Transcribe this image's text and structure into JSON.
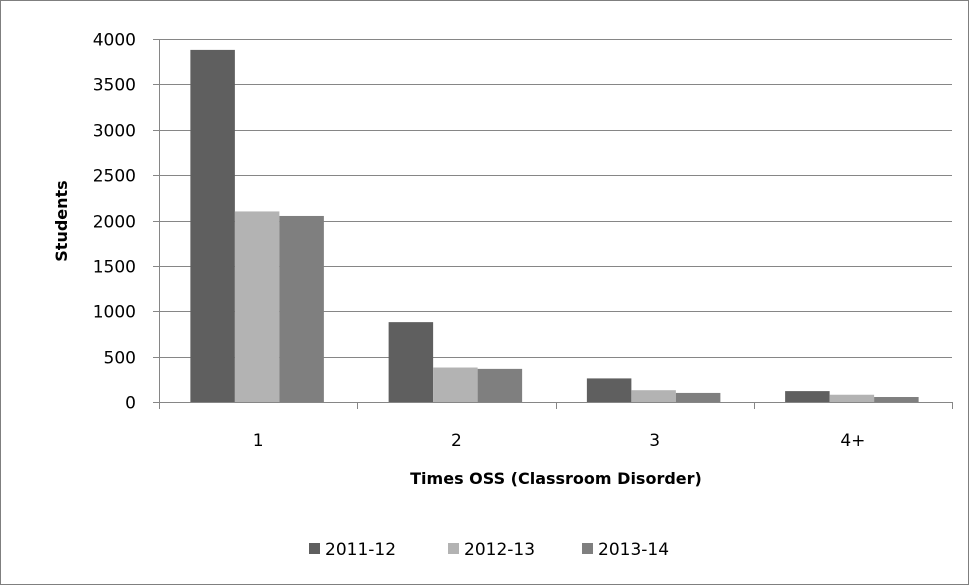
{
  "chart_data": {
    "type": "bar",
    "categories": [
      "1",
      "2",
      "3",
      "4+"
    ],
    "series": [
      {
        "name": "2011-12",
        "color": "#5f5f5f",
        "values": [
          3880,
          880,
          260,
          120
        ]
      },
      {
        "name": "2012-13",
        "color": "#b3b3b3",
        "values": [
          2100,
          380,
          130,
          80
        ]
      },
      {
        "name": "2013-14",
        "color": "#7f7f7f",
        "values": [
          2050,
          365,
          100,
          55
        ]
      }
    ],
    "xlabel": "Times OSS (Classroom Disorder)",
    "ylabel": "Students",
    "ylim": [
      0,
      4000
    ],
    "yticks": [
      0,
      500,
      1000,
      1500,
      2000,
      2500,
      3000,
      3500,
      4000
    ],
    "grid": true,
    "legend_position": "bottom"
  }
}
